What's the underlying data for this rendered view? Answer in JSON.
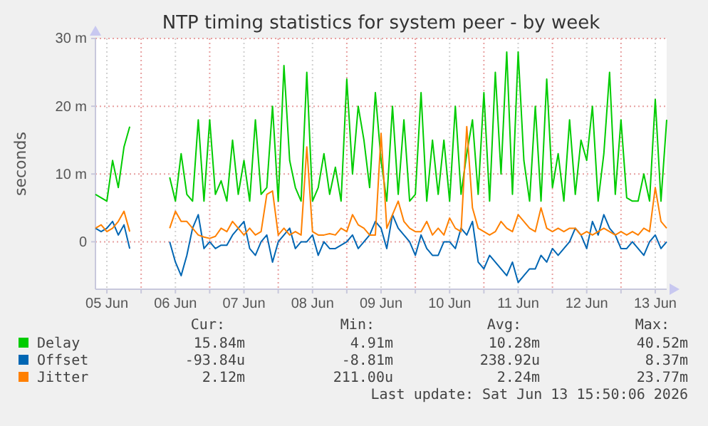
{
  "chart_data": {
    "type": "line",
    "title": "NTP timing statistics for system peer - by week",
    "ylabel": "seconds",
    "x": [
      "2026-06-05T08:00",
      "2026-06-05T10:00",
      "2026-06-05T12:00",
      "2026-06-05T14:00",
      "2026-06-05T16:00",
      "2026-06-05T18:00",
      "2026-06-05T20:00",
      "2026-06-05T22:00",
      "2026-06-06T00:00",
      "2026-06-06T02:00",
      "2026-06-06T04:00",
      "2026-06-06T06:00",
      "2026-06-06T08:00",
      "2026-06-06T10:00",
      "2026-06-06T12:00",
      "2026-06-06T14:00",
      "2026-06-06T16:00",
      "2026-06-06T18:00",
      "2026-06-06T20:00",
      "2026-06-06T22:00",
      "2026-06-07T00:00",
      "2026-06-07T02:00",
      "2026-06-07T04:00",
      "2026-06-07T06:00",
      "2026-06-07T08:00",
      "2026-06-07T10:00",
      "2026-06-07T12:00",
      "2026-06-07T14:00",
      "2026-06-07T16:00",
      "2026-06-07T18:00",
      "2026-06-07T20:00",
      "2026-06-07T22:00",
      "2026-06-08T00:00",
      "2026-06-08T02:00",
      "2026-06-08T04:00",
      "2026-06-08T06:00",
      "2026-06-08T08:00",
      "2026-06-08T10:00",
      "2026-06-08T12:00",
      "2026-06-08T14:00",
      "2026-06-08T16:00",
      "2026-06-08T18:00",
      "2026-06-08T20:00",
      "2026-06-08T22:00",
      "2026-06-09T00:00",
      "2026-06-09T02:00",
      "2026-06-09T04:00",
      "2026-06-09T06:00",
      "2026-06-09T08:00",
      "2026-06-09T10:00",
      "2026-06-09T12:00",
      "2026-06-09T14:00",
      "2026-06-09T16:00",
      "2026-06-09T18:00",
      "2026-06-09T20:00",
      "2026-06-09T22:00",
      "2026-06-10T00:00",
      "2026-06-10T02:00",
      "2026-06-10T04:00",
      "2026-06-10T06:00",
      "2026-06-10T08:00",
      "2026-06-10T10:00",
      "2026-06-10T12:00",
      "2026-06-10T14:00",
      "2026-06-10T16:00",
      "2026-06-10T18:00",
      "2026-06-10T20:00",
      "2026-06-10T22:00",
      "2026-06-11T00:00",
      "2026-06-11T02:00",
      "2026-06-11T04:00",
      "2026-06-11T06:00",
      "2026-06-11T08:00",
      "2026-06-11T10:00",
      "2026-06-11T12:00",
      "2026-06-11T14:00",
      "2026-06-11T16:00",
      "2026-06-11T18:00",
      "2026-06-11T20:00",
      "2026-06-11T22:00",
      "2026-06-12T00:00",
      "2026-06-12T02:00",
      "2026-06-12T04:00",
      "2026-06-12T06:00",
      "2026-06-12T08:00",
      "2026-06-12T10:00",
      "2026-06-12T12:00",
      "2026-06-12T14:00",
      "2026-06-12T16:00",
      "2026-06-12T18:00",
      "2026-06-12T20:00",
      "2026-06-12T22:00",
      "2026-06-13T00:00",
      "2026-06-13T02:00",
      "2026-06-13T04:00",
      "2026-06-13T06:00",
      "2026-06-13T08:00",
      "2026-06-13T10:00",
      "2026-06-13T12:00",
      "2026-06-13T14:00",
      "2026-06-13T16:00"
    ],
    "series": [
      {
        "name": "Delay",
        "color": "#00cc00",
        "values": [
          7,
          6.5,
          6,
          12,
          8,
          14,
          17,
          null,
          null,
          null,
          null,
          null,
          null,
          9.5,
          6,
          13,
          7,
          6,
          18,
          6,
          18,
          7,
          9,
          6,
          15,
          7,
          12,
          6,
          18,
          7,
          8,
          20,
          6,
          26,
          12,
          8,
          6,
          25,
          6,
          8,
          13,
          7,
          11,
          6,
          24,
          10,
          20,
          15,
          8,
          22,
          12,
          6,
          20,
          7,
          18,
          6,
          7,
          22,
          6,
          15,
          7,
          15,
          6,
          20,
          7,
          13,
          18,
          7,
          22,
          6,
          25,
          10,
          28,
          7,
          28,
          12,
          6,
          20,
          6,
          24,
          8,
          13,
          6,
          18,
          7,
          15,
          12,
          20,
          6,
          13,
          25,
          7,
          18,
          6.5,
          6,
          6,
          10,
          6,
          21,
          6,
          18
        ]
      },
      {
        "name": "Offset",
        "color": "#0066b3",
        "values": [
          2,
          1.5,
          2,
          3,
          1,
          2.5,
          -1,
          null,
          null,
          null,
          null,
          null,
          null,
          0,
          -3,
          -5,
          -2,
          2,
          4,
          -1,
          0,
          -1,
          -0.5,
          -0.5,
          1,
          2,
          3,
          -1,
          -2,
          0,
          1,
          -3,
          0,
          1,
          2,
          -1,
          0,
          0,
          1,
          -2,
          0,
          -1,
          -1,
          -0.5,
          0,
          1,
          -1,
          0,
          1,
          3,
          2,
          -1,
          4,
          2,
          1,
          0,
          -2,
          1,
          -1,
          -2,
          -2,
          0,
          0,
          -1,
          2,
          1,
          3,
          -3,
          -4,
          -2,
          -3,
          -4,
          -5,
          -3,
          -6,
          -5,
          -4,
          -4,
          -2,
          -3,
          -1,
          -2,
          -1,
          0,
          2,
          1,
          -1,
          3,
          1,
          4,
          2,
          1,
          -1,
          -1,
          0,
          -1,
          -2,
          0,
          1,
          -1,
          0
        ]
      },
      {
        "name": "Jitter",
        "color": "#ff8000",
        "values": [
          2,
          2.5,
          1.5,
          2,
          3,
          4.5,
          1.5,
          null,
          null,
          null,
          null,
          null,
          null,
          2,
          4.5,
          3,
          3,
          2,
          1,
          0.7,
          0.5,
          0.8,
          2,
          1.5,
          3,
          2,
          1,
          2,
          1,
          1.5,
          7,
          7.5,
          1,
          2,
          1,
          1.5,
          1,
          14,
          1.5,
          1,
          1,
          1.2,
          1,
          2,
          1.5,
          4,
          2.5,
          2,
          1,
          1,
          16,
          2,
          4,
          6,
          3,
          2,
          1.5,
          1.5,
          3,
          1,
          2,
          1,
          3.5,
          2,
          1.5,
          17,
          5,
          2,
          1.5,
          1,
          1.5,
          3,
          2,
          1.5,
          4,
          3,
          2,
          1.5,
          5,
          2,
          1.5,
          2,
          1.5,
          2,
          2,
          1,
          1.5,
          1,
          1.5,
          2,
          1.5,
          1,
          1.5,
          1,
          1.5,
          1,
          2,
          1.5,
          8,
          3,
          2
        ]
      }
    ],
    "xlim": [
      "2026-06-05T08:00",
      "2026-06-13T16:00"
    ],
    "xticks": [
      {
        "value": "2026-06-05T12:00",
        "label": "05 Jun"
      },
      {
        "value": "2026-06-06T00:00",
        "label": null
      },
      {
        "value": "2026-06-06T12:00",
        "label": "06 Jun"
      },
      {
        "value": "2026-06-07T00:00",
        "label": null
      },
      {
        "value": "2026-06-07T12:00",
        "label": "07 Jun"
      },
      {
        "value": "2026-06-08T00:00",
        "label": null
      },
      {
        "value": "2026-06-08T12:00",
        "label": "08 Jun"
      },
      {
        "value": "2026-06-09T00:00",
        "label": null
      },
      {
        "value": "2026-06-09T12:00",
        "label": "09 Jun"
      },
      {
        "value": "2026-06-10T00:00",
        "label": null
      },
      {
        "value": "2026-06-10T12:00",
        "label": "10 Jun"
      },
      {
        "value": "2026-06-11T00:00",
        "label": null
      },
      {
        "value": "2026-06-11T12:00",
        "label": "11 Jun"
      },
      {
        "value": "2026-06-12T00:00",
        "label": null
      },
      {
        "value": "2026-06-12T12:00",
        "label": "12 Jun"
      },
      {
        "value": "2026-06-13T00:00",
        "label": null
      },
      {
        "value": "2026-06-13T12:00",
        "label": "13 Jun"
      }
    ],
    "ylim": [
      -7,
      30
    ],
    "yticks": [
      0,
      {
        "value": 10,
        "label": "10 m"
      },
      {
        "value": 20,
        "label": "20 m"
      },
      {
        "value": 30,
        "label": "30 m"
      }
    ],
    "grid": true,
    "legend": "bottom",
    "line_style": "solid",
    "annotations": [
      "Cur:",
      "Min:",
      "Avg:",
      "Max:",
      "15.84m",
      "4.91m",
      "10.28m",
      "40.52m",
      "-93.84u",
      "-8.81m",
      "238.92u",
      "8.37m",
      "2.12m",
      "211.00u",
      "2.24m",
      "23.77m",
      "Last update: Sat Jun 13 15:50:06 2026"
    ]
  }
}
